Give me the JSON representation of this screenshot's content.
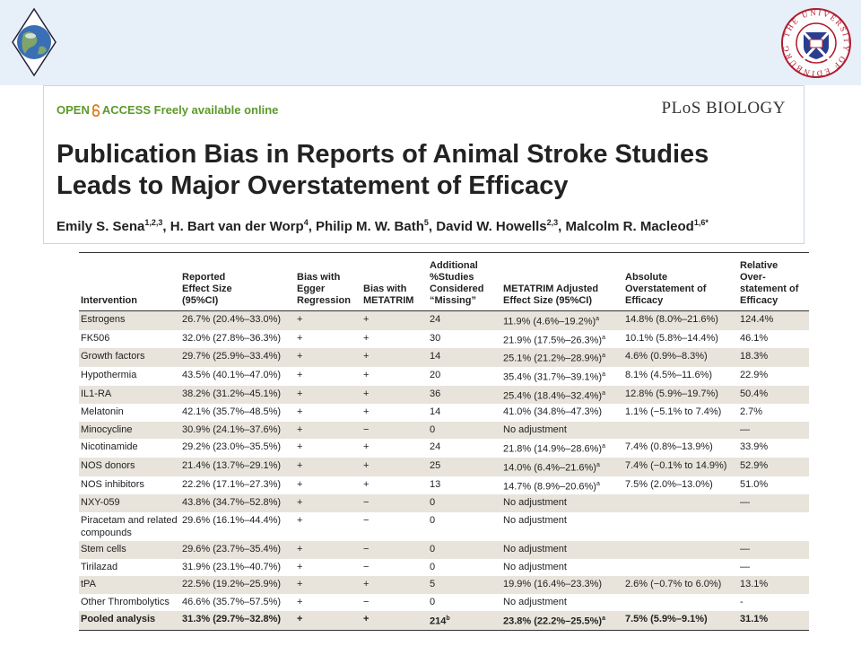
{
  "slide": {
    "logo_right_text": "THE UNIVERSITY OF EDINBURGH"
  },
  "header": {
    "open": "OPEN",
    "access": "ACCESS Freely available online",
    "journal": "PLoS BIOLOGY",
    "title_line1": "Publication Bias in Reports of Animal Stroke Studies",
    "title_line2": "Leads to Major Overstatement of Efficacy",
    "authors": [
      {
        "name": "Emily S. Sena",
        "sup": "1,2,3"
      },
      {
        "name": "H. Bart van der Worp",
        "sup": "4"
      },
      {
        "name": "Philip M. W. Bath",
        "sup": "5"
      },
      {
        "name": "David W. Howells",
        "sup": "2,3"
      },
      {
        "name": "Malcolm R. Macleod",
        "sup": "1,6*"
      }
    ]
  },
  "table": {
    "columns": [
      "Intervention",
      "Reported\nEffect Size\n(95%CI)",
      "Bias with\nEgger\nRegression",
      "Bias with\nMETATRIM",
      "Additional\n%Studies\nConsidered\n“Missing”",
      "METATRIM Adjusted\nEffect Size (95%CI)",
      "Absolute\nOverstatement of\nEfficacy",
      "Relative\nOver-\nstatement of\nEfficacy"
    ],
    "rows": [
      [
        "Estrogens",
        "26.7% (20.4%–33.0%)",
        "+",
        "+",
        "24",
        {
          "text": "11.9% (4.6%–19.2%)",
          "sup": "a"
        },
        "14.8% (8.0%–21.6%)",
        "124.4%"
      ],
      [
        "FK506",
        "32.0% (27.8%–36.3%)",
        "+",
        "+",
        "30",
        {
          "text": "21.9% (17.5%–26.3%)",
          "sup": "a"
        },
        "10.1% (5.8%–14.4%)",
        "46.1%"
      ],
      [
        "Growth factors",
        "29.7% (25.9%–33.4%)",
        "+",
        "+",
        "14",
        {
          "text": "25.1% (21.2%–28.9%)",
          "sup": "a"
        },
        "4.6% (0.9%–8.3%)",
        "18.3%"
      ],
      [
        "Hypothermia",
        "43.5% (40.1%–47.0%)",
        "+",
        "+",
        "20",
        {
          "text": "35.4% (31.7%–39.1%)",
          "sup": "a"
        },
        "8.1% (4.5%–11.6%)",
        "22.9%"
      ],
      [
        "IL1-RA",
        "38.2% (31.2%–45.1%)",
        "+",
        "+",
        "36",
        {
          "text": "25.4% (18.4%–32.4%)",
          "sup": "a"
        },
        "12.8% (5.9%–19.7%)",
        "50.4%"
      ],
      [
        "Melatonin",
        "42.1% (35.7%–48.5%)",
        "+",
        "+",
        "14",
        "41.0% (34.8%–47.3%)",
        "1.1% (−5.1% to 7.4%)",
        "2.7%"
      ],
      [
        "Minocycline",
        "30.9% (24.1%–37.6%)",
        "+",
        "−",
        "0",
        "No adjustment",
        null,
        "—"
      ],
      [
        "Nicotinamide",
        "29.2% (23.0%–35.5%)",
        "+",
        "+",
        "24",
        {
          "text": "21.8% (14.9%–28.6%)",
          "sup": "a"
        },
        "7.4% (0.8%–13.9%)",
        "33.9%"
      ],
      [
        "NOS donors",
        "21.4% (13.7%–29.1%)",
        "+",
        "+",
        "25",
        {
          "text": "14.0% (6.4%–21.6%)",
          "sup": "a"
        },
        "7.4% (−0.1% to 14.9%)",
        "52.9%"
      ],
      [
        "NOS inhibitors",
        "22.2% (17.1%–27.3%)",
        "+",
        "+",
        "13",
        {
          "text": "14.7% (8.9%–20.6%)",
          "sup": "a"
        },
        "7.5% (2.0%–13.0%)",
        "51.0%"
      ],
      [
        "NXY-059",
        "43.8% (34.7%–52.8%)",
        "+",
        "−",
        "0",
        "No adjustment",
        null,
        "—"
      ],
      [
        "Piracetam and related compounds",
        "29.6% (16.1%–44.4%)",
        "+",
        "−",
        "0",
        "No adjustment",
        null,
        null
      ],
      [
        "Stem cells",
        "29.6% (23.7%–35.4%)",
        "+",
        "−",
        "0",
        "No adjustment",
        null,
        "—"
      ],
      [
        "Tirilazad",
        "31.9% (23.1%–40.7%)",
        "+",
        "−",
        "0",
        "No adjustment",
        null,
        "—"
      ],
      [
        "tPA",
        "22.5% (19.2%–25.9%)",
        "+",
        "+",
        "5",
        "19.9% (16.4%–23.3%)",
        "2.6% (−0.7% to 6.0%)",
        "13.1%"
      ],
      [
        "Other Thrombolytics",
        "46.6% (35.7%–57.5%)",
        "+",
        "−",
        "0",
        "No adjustment",
        null,
        "-"
      ],
      [
        "Pooled analysis",
        "31.3% (29.7%–32.8%)",
        "+",
        "+",
        {
          "text": "214",
          "sup": "b"
        },
        {
          "text": "23.8% (22.2%–25.5%)",
          "sup": "a"
        },
        "7.5% (5.9%–9.1%)",
        "31.1%"
      ]
    ]
  }
}
